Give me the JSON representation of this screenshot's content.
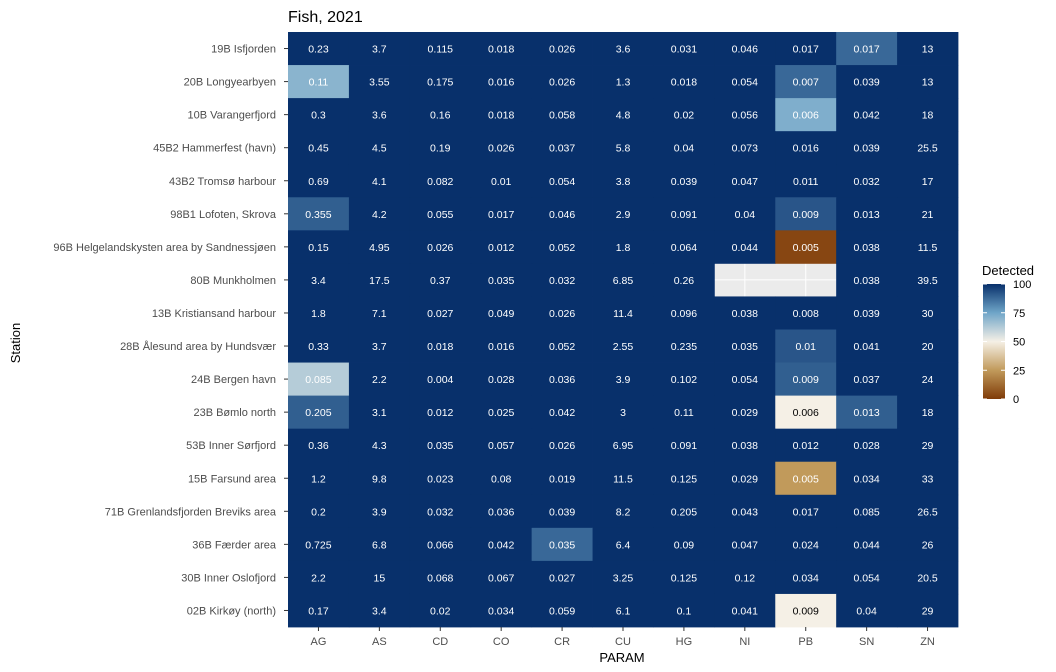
{
  "chart_data": {
    "type": "heatmap",
    "title": "Fish, 2021",
    "xlabel": "PARAM",
    "ylabel": "Station",
    "x": [
      "AG",
      "AS",
      "CD",
      "CO",
      "CR",
      "CU",
      "HG",
      "NI",
      "PB",
      "SN",
      "ZN"
    ],
    "y": [
      "19B Isfjorden",
      "20B Longyearbyen",
      "10B Varangerfjord",
      "45B2 Hammerfest (havn)",
      "43B2 Tromsø harbour",
      "98B1 Lofoten, Skrova",
      "96B Helgelandskysten area by Sandnessjøen",
      "80B Munkholmen",
      "13B Kristiansand harbour",
      "28B Ålesund area by Hundsvær",
      "24B Bergen havn",
      "23B Bømlo north",
      "53B Inner Sørfjord",
      "15B Farsund area",
      "71B Grenlandsfjorden Breviks area",
      "36B Færder area",
      "30B Inner Oslofjord",
      "02B Kirkøy (north)"
    ],
    "labels": [
      [
        "0.23",
        "3.7",
        "0.115",
        "0.018",
        "0.026",
        "3.6",
        "0.031",
        "0.046",
        "0.017",
        "0.017",
        "13"
      ],
      [
        "0.11",
        "3.55",
        "0.175",
        "0.016",
        "0.026",
        "1.3",
        "0.018",
        "0.054",
        "0.007",
        "0.039",
        "13"
      ],
      [
        "0.3",
        "3.6",
        "0.16",
        "0.018",
        "0.058",
        "4.8",
        "0.02",
        "0.056",
        "0.006",
        "0.042",
        "18"
      ],
      [
        "0.45",
        "4.5",
        "0.19",
        "0.026",
        "0.037",
        "5.8",
        "0.04",
        "0.073",
        "0.016",
        "0.039",
        "25.5"
      ],
      [
        "0.69",
        "4.1",
        "0.082",
        "0.01",
        "0.054",
        "3.8",
        "0.039",
        "0.047",
        "0.011",
        "0.032",
        "17"
      ],
      [
        "0.355",
        "4.2",
        "0.055",
        "0.017",
        "0.046",
        "2.9",
        "0.091",
        "0.04",
        "0.009",
        "0.013",
        "21"
      ],
      [
        "0.15",
        "4.95",
        "0.026",
        "0.012",
        "0.052",
        "1.8",
        "0.064",
        "0.044",
        "0.005",
        "0.038",
        "11.5"
      ],
      [
        "3.4",
        "17.5",
        "0.37",
        "0.035",
        "0.032",
        "6.85",
        "0.26",
        null,
        null,
        "0.038",
        "39.5"
      ],
      [
        "1.8",
        "7.1",
        "0.027",
        "0.049",
        "0.026",
        "11.4",
        "0.096",
        "0.038",
        "0.008",
        "0.039",
        "30"
      ],
      [
        "0.33",
        "3.7",
        "0.018",
        "0.016",
        "0.052",
        "2.55",
        "0.235",
        "0.035",
        "0.01",
        "0.041",
        "20"
      ],
      [
        "0.085",
        "2.2",
        "0.004",
        "0.028",
        "0.036",
        "3.9",
        "0.102",
        "0.054",
        "0.009",
        "0.037",
        "24"
      ],
      [
        "0.205",
        "3.1",
        "0.012",
        "0.025",
        "0.042",
        "3",
        "0.11",
        "0.029",
        "0.006",
        "0.013",
        "18"
      ],
      [
        "0.36",
        "4.3",
        "0.035",
        "0.057",
        "0.026",
        "6.95",
        "0.091",
        "0.038",
        "0.012",
        "0.028",
        "29"
      ],
      [
        "1.2",
        "9.8",
        "0.023",
        "0.08",
        "0.019",
        "11.5",
        "0.125",
        "0.029",
        "0.005",
        "0.034",
        "33"
      ],
      [
        "0.2",
        "3.9",
        "0.032",
        "0.036",
        "0.039",
        "8.2",
        "0.205",
        "0.043",
        "0.017",
        "0.085",
        "26.5"
      ],
      [
        "0.725",
        "6.8",
        "0.066",
        "0.042",
        "0.035",
        "6.4",
        "0.09",
        "0.047",
        "0.024",
        "0.044",
        "26"
      ],
      [
        "2.2",
        "15",
        "0.068",
        "0.067",
        "0.027",
        "3.25",
        "0.125",
        "0.12",
        "0.034",
        "0.054",
        "20.5"
      ],
      [
        "0.17",
        "3.4",
        "0.02",
        "0.034",
        "0.059",
        "6.1",
        "0.1",
        "0.041",
        "0.009",
        "0.04",
        "29"
      ]
    ],
    "detected": [
      [
        100,
        100,
        100,
        100,
        100,
        100,
        100,
        100,
        100,
        88,
        100
      ],
      [
        70,
        100,
        100,
        100,
        100,
        100,
        100,
        100,
        88,
        100,
        100
      ],
      [
        100,
        100,
        100,
        100,
        100,
        100,
        100,
        100,
        72,
        100,
        100
      ],
      [
        100,
        100,
        100,
        100,
        100,
        100,
        100,
        100,
        100,
        100,
        100
      ],
      [
        100,
        100,
        100,
        100,
        100,
        100,
        100,
        100,
        100,
        100,
        100
      ],
      [
        90,
        100,
        100,
        100,
        100,
        100,
        100,
        100,
        92,
        100,
        100
      ],
      [
        100,
        100,
        100,
        100,
        100,
        100,
        100,
        100,
        3,
        100,
        100
      ],
      [
        100,
        100,
        100,
        100,
        100,
        100,
        100,
        null,
        null,
        100,
        100
      ],
      [
        100,
        100,
        100,
        100,
        100,
        100,
        100,
        100,
        100,
        100,
        100
      ],
      [
        100,
        100,
        100,
        100,
        100,
        100,
        100,
        100,
        92,
        100,
        100
      ],
      [
        62,
        100,
        100,
        100,
        100,
        100,
        100,
        100,
        90,
        100,
        100
      ],
      [
        90,
        100,
        100,
        100,
        100,
        100,
        100,
        100,
        50,
        90,
        100
      ],
      [
        100,
        100,
        100,
        100,
        100,
        100,
        100,
        100,
        100,
        100,
        100
      ],
      [
        100,
        100,
        100,
        100,
        100,
        100,
        100,
        100,
        25,
        100,
        100
      ],
      [
        100,
        100,
        100,
        100,
        100,
        100,
        100,
        100,
        100,
        100,
        100
      ],
      [
        100,
        100,
        100,
        100,
        88,
        100,
        100,
        100,
        100,
        100,
        100
      ],
      [
        100,
        100,
        100,
        100,
        100,
        100,
        100,
        100,
        100,
        100,
        100
      ],
      [
        100,
        100,
        100,
        100,
        100,
        100,
        100,
        100,
        50,
        100,
        100
      ]
    ],
    "legend": {
      "title": "Detected",
      "ticks": [
        0,
        25,
        50,
        75,
        100
      ],
      "range": [
        0,
        100
      ],
      "placement": "right"
    },
    "colors": {
      "panel_background": "#ebebeb",
      "gridline": "#ffffff",
      "palette_low": "#7f3b08",
      "palette_mid": "#f5f0e6",
      "palette_high": "#08306b"
    }
  }
}
